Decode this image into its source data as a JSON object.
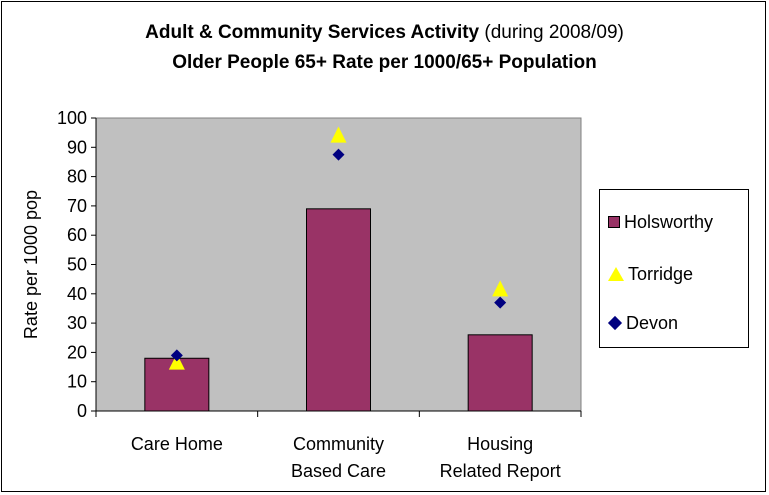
{
  "chart_data": {
    "type": "bar",
    "title_bold": "Adult & Community Services Activity",
    "title_rest": " (during 2008/09)",
    "subtitle": "Older People 65+ Rate per 1000/65+ Population",
    "xlabel": "",
    "ylabel": "Rate per 1000 pop",
    "ylim": [
      0,
      100
    ],
    "yticks": [
      "0",
      "10",
      "20",
      "30",
      "40",
      "50",
      "60",
      "70",
      "80",
      "90",
      "100"
    ],
    "categories": [
      [
        "Care Home"
      ],
      [
        "Community",
        "Based Care"
      ],
      [
        "Housing",
        "Related Report"
      ]
    ],
    "series": [
      {
        "name": "Holsworthy",
        "kind": "bar",
        "color": "#993366",
        "values": [
          18,
          69,
          26
        ]
      },
      {
        "name": "Torridge",
        "kind": "triangle",
        "color": "#ffff00",
        "values": [
          16.5,
          94,
          41.5
        ]
      },
      {
        "name": "Devon",
        "kind": "diamond",
        "color": "#000080",
        "values": [
          19,
          87.5,
          37
        ]
      }
    ],
    "plot_background": "#c0c0c0",
    "grid": false,
    "legend_position": "right"
  }
}
